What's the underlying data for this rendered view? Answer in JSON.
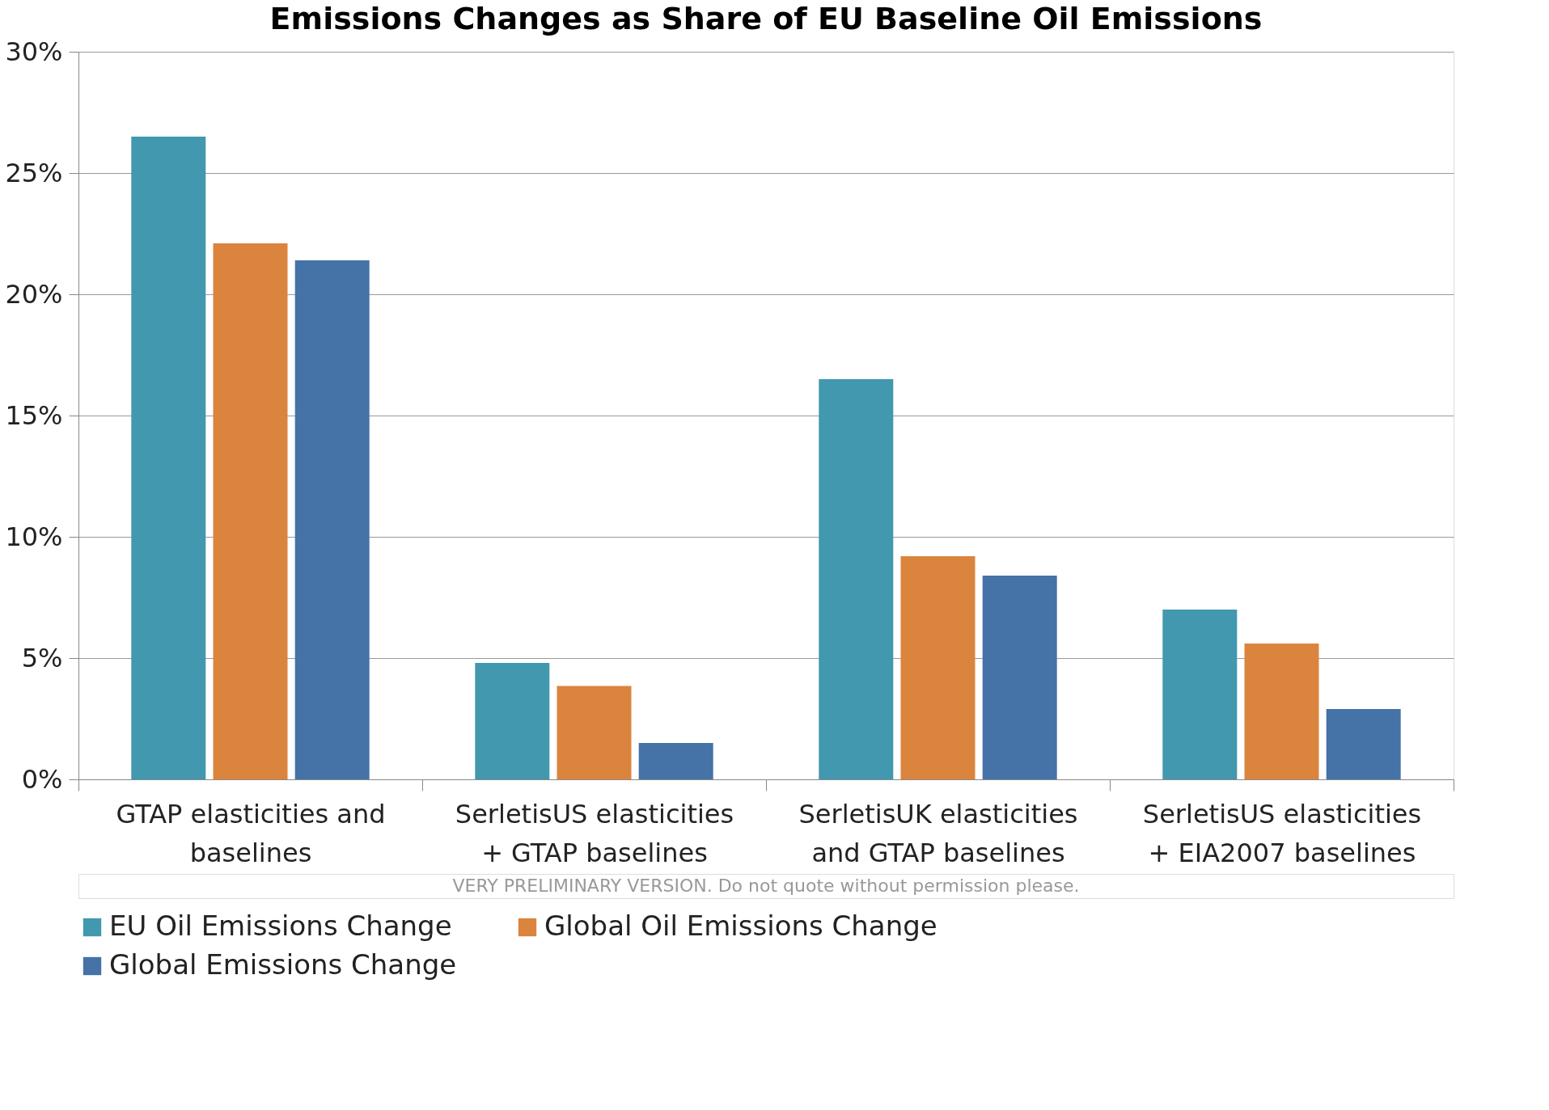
{
  "chart_data": {
    "type": "bar",
    "title": "Emissions Changes as Share of EU Baseline Oil Emissions",
    "categories": [
      "GTAP elasticities and baselines",
      "SerletisUS elasticities + GTAP baselines",
      "SerletisUK elasticities and GTAP baselines",
      "SerletisUS elasticities + EIA2007 baselines"
    ],
    "series": [
      {
        "name": "EU Oil Emissions Change",
        "color": "#4198af",
        "values": [
          26.5,
          4.8,
          16.5,
          7.0
        ]
      },
      {
        "name": "Global Oil Emissions Change",
        "color": "#db843d",
        "values": [
          22.1,
          3.85,
          9.2,
          5.6
        ]
      },
      {
        "name": "Global Emissions Change",
        "color": "#4572a7",
        "values": [
          21.4,
          1.5,
          8.4,
          2.9
        ]
      }
    ],
    "ylim": [
      0,
      30
    ],
    "yticks": [
      {
        "value": 0,
        "label": "0%"
      },
      {
        "value": 5,
        "label": "5%"
      },
      {
        "value": 10,
        "label": "10%"
      },
      {
        "value": 15,
        "label": "15%"
      },
      {
        "value": 20,
        "label": "20%"
      },
      {
        "value": 25,
        "label": "25%"
      },
      {
        "value": 30,
        "label": "30%"
      }
    ],
    "grid": "y",
    "legend": "bottom",
    "annotations": [
      "VERY PRELIMINARY VERSION. Do not quote without permission please."
    ]
  }
}
